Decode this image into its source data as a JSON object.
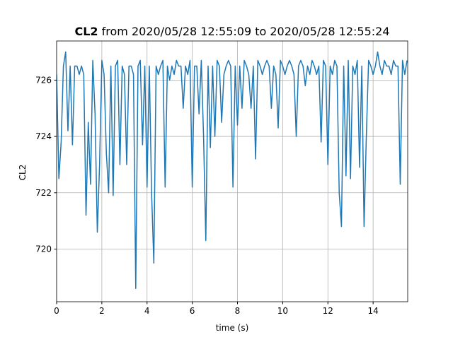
{
  "chart_data": {
    "type": "line",
    "title": [
      "CL2",
      "from 2020/05/28 12:55:09 to 2020/05/28 12:55:24"
    ],
    "x_label": "time (s)",
    "y_label": "CL2",
    "x": [
      0,
      0.1,
      0.2,
      0.3,
      0.4,
      0.5,
      0.6,
      0.7,
      0.8,
      0.9,
      1,
      1.1,
      1.2,
      1.3,
      1.4,
      1.5,
      1.6,
      1.7,
      1.8,
      1.9,
      2,
      2.1,
      2.2,
      2.3,
      2.4,
      2.5,
      2.6,
      2.7,
      2.8,
      2.9,
      3,
      3.1,
      3.2,
      3.3,
      3.4,
      3.5,
      3.6,
      3.7,
      3.8,
      3.9,
      4,
      4.1,
      4.2,
      4.3,
      4.4,
      4.5,
      4.6,
      4.7,
      4.8,
      4.9,
      5,
      5.1,
      5.2,
      5.3,
      5.4,
      5.5,
      5.6,
      5.7,
      5.8,
      5.9,
      6,
      6.1,
      6.2,
      6.3,
      6.4,
      6.5,
      6.6,
      6.7,
      6.8,
      6.9,
      7,
      7.1,
      7.2,
      7.3,
      7.4,
      7.5,
      7.6,
      7.7,
      7.8,
      7.9,
      8,
      8.1,
      8.2,
      8.3,
      8.4,
      8.5,
      8.6,
      8.7,
      8.8,
      8.9,
      9,
      9.1,
      9.2,
      9.3,
      9.4,
      9.5,
      9.6,
      9.7,
      9.8,
      9.9,
      10,
      10.1,
      10.2,
      10.3,
      10.4,
      10.5,
      10.6,
      10.7,
      10.8,
      10.9,
      11,
      11.1,
      11.2,
      11.3,
      11.4,
      11.5,
      11.6,
      11.7,
      11.8,
      11.9,
      12,
      12.1,
      12.2,
      12.3,
      12.4,
      12.5,
      12.6,
      12.7,
      12.8,
      12.9,
      13,
      13.1,
      13.2,
      13.3,
      13.4,
      13.5,
      13.6,
      13.7,
      13.8,
      13.9,
      14,
      14.1,
      14.2,
      14.3,
      14.4,
      14.5,
      14.6,
      14.7,
      14.8,
      14.9,
      15,
      15.1,
      15.2,
      15.3,
      15.4,
      15.5
    ],
    "series": [
      {
        "name": "CL2",
        "color": "#1f77b4",
        "values": [
          726.2,
          722.5,
          723.8,
          726.5,
          727.0,
          724.2,
          726.5,
          723.7,
          726.5,
          726.5,
          726.2,
          726.5,
          726.2,
          721.2,
          724.5,
          722.3,
          726.7,
          724.8,
          720.6,
          723.0,
          726.7,
          726.2,
          723.4,
          722.0,
          726.5,
          721.9,
          726.5,
          726.7,
          723.0,
          726.5,
          726.2,
          723.0,
          726.5,
          726.5,
          726.2,
          718.6,
          726.5,
          726.7,
          723.7,
          726.5,
          722.2,
          726.5,
          722.0,
          719.5,
          726.5,
          726.2,
          726.5,
          726.7,
          722.2,
          726.5,
          726.0,
          726.5,
          726.2,
          726.7,
          726.5,
          726.5,
          725.0,
          726.5,
          726.2,
          726.7,
          722.2,
          726.5,
          726.5,
          724.8,
          726.7,
          724.0,
          720.3,
          726.5,
          723.6,
          726.5,
          724.0,
          726.7,
          726.5,
          724.5,
          726.2,
          726.5,
          726.7,
          726.5,
          722.2,
          726.5,
          724.4,
          726.5,
          725.0,
          726.7,
          726.5,
          726.2,
          725.0,
          726.5,
          723.2,
          726.7,
          726.5,
          726.2,
          726.5,
          726.7,
          726.5,
          725.0,
          726.5,
          726.2,
          724.3,
          726.7,
          726.5,
          726.2,
          726.5,
          726.7,
          726.5,
          726.2,
          724.0,
          726.5,
          726.7,
          726.5,
          725.8,
          726.5,
          726.2,
          726.7,
          726.5,
          726.2,
          726.5,
          723.8,
          726.7,
          726.5,
          723.0,
          726.5,
          726.2,
          726.7,
          726.5,
          722.0,
          720.8,
          726.5,
          722.6,
          726.7,
          722.5,
          726.5,
          726.2,
          726.7,
          722.9,
          726.5,
          720.8,
          724.0,
          726.7,
          726.5,
          726.2,
          726.5,
          727.0,
          726.5,
          726.2,
          726.7,
          726.5,
          726.5,
          726.2,
          726.7,
          726.5,
          726.5,
          722.3,
          726.7,
          726.2,
          726.7
        ]
      }
    ],
    "xlim": [
      0,
      15.53
    ],
    "ylim": [
      718.13,
      727.39
    ],
    "xticks": [
      0,
      2,
      4,
      6,
      8,
      10,
      12,
      14
    ],
    "yticks": [
      720,
      722,
      724,
      726
    ],
    "grid": true
  }
}
